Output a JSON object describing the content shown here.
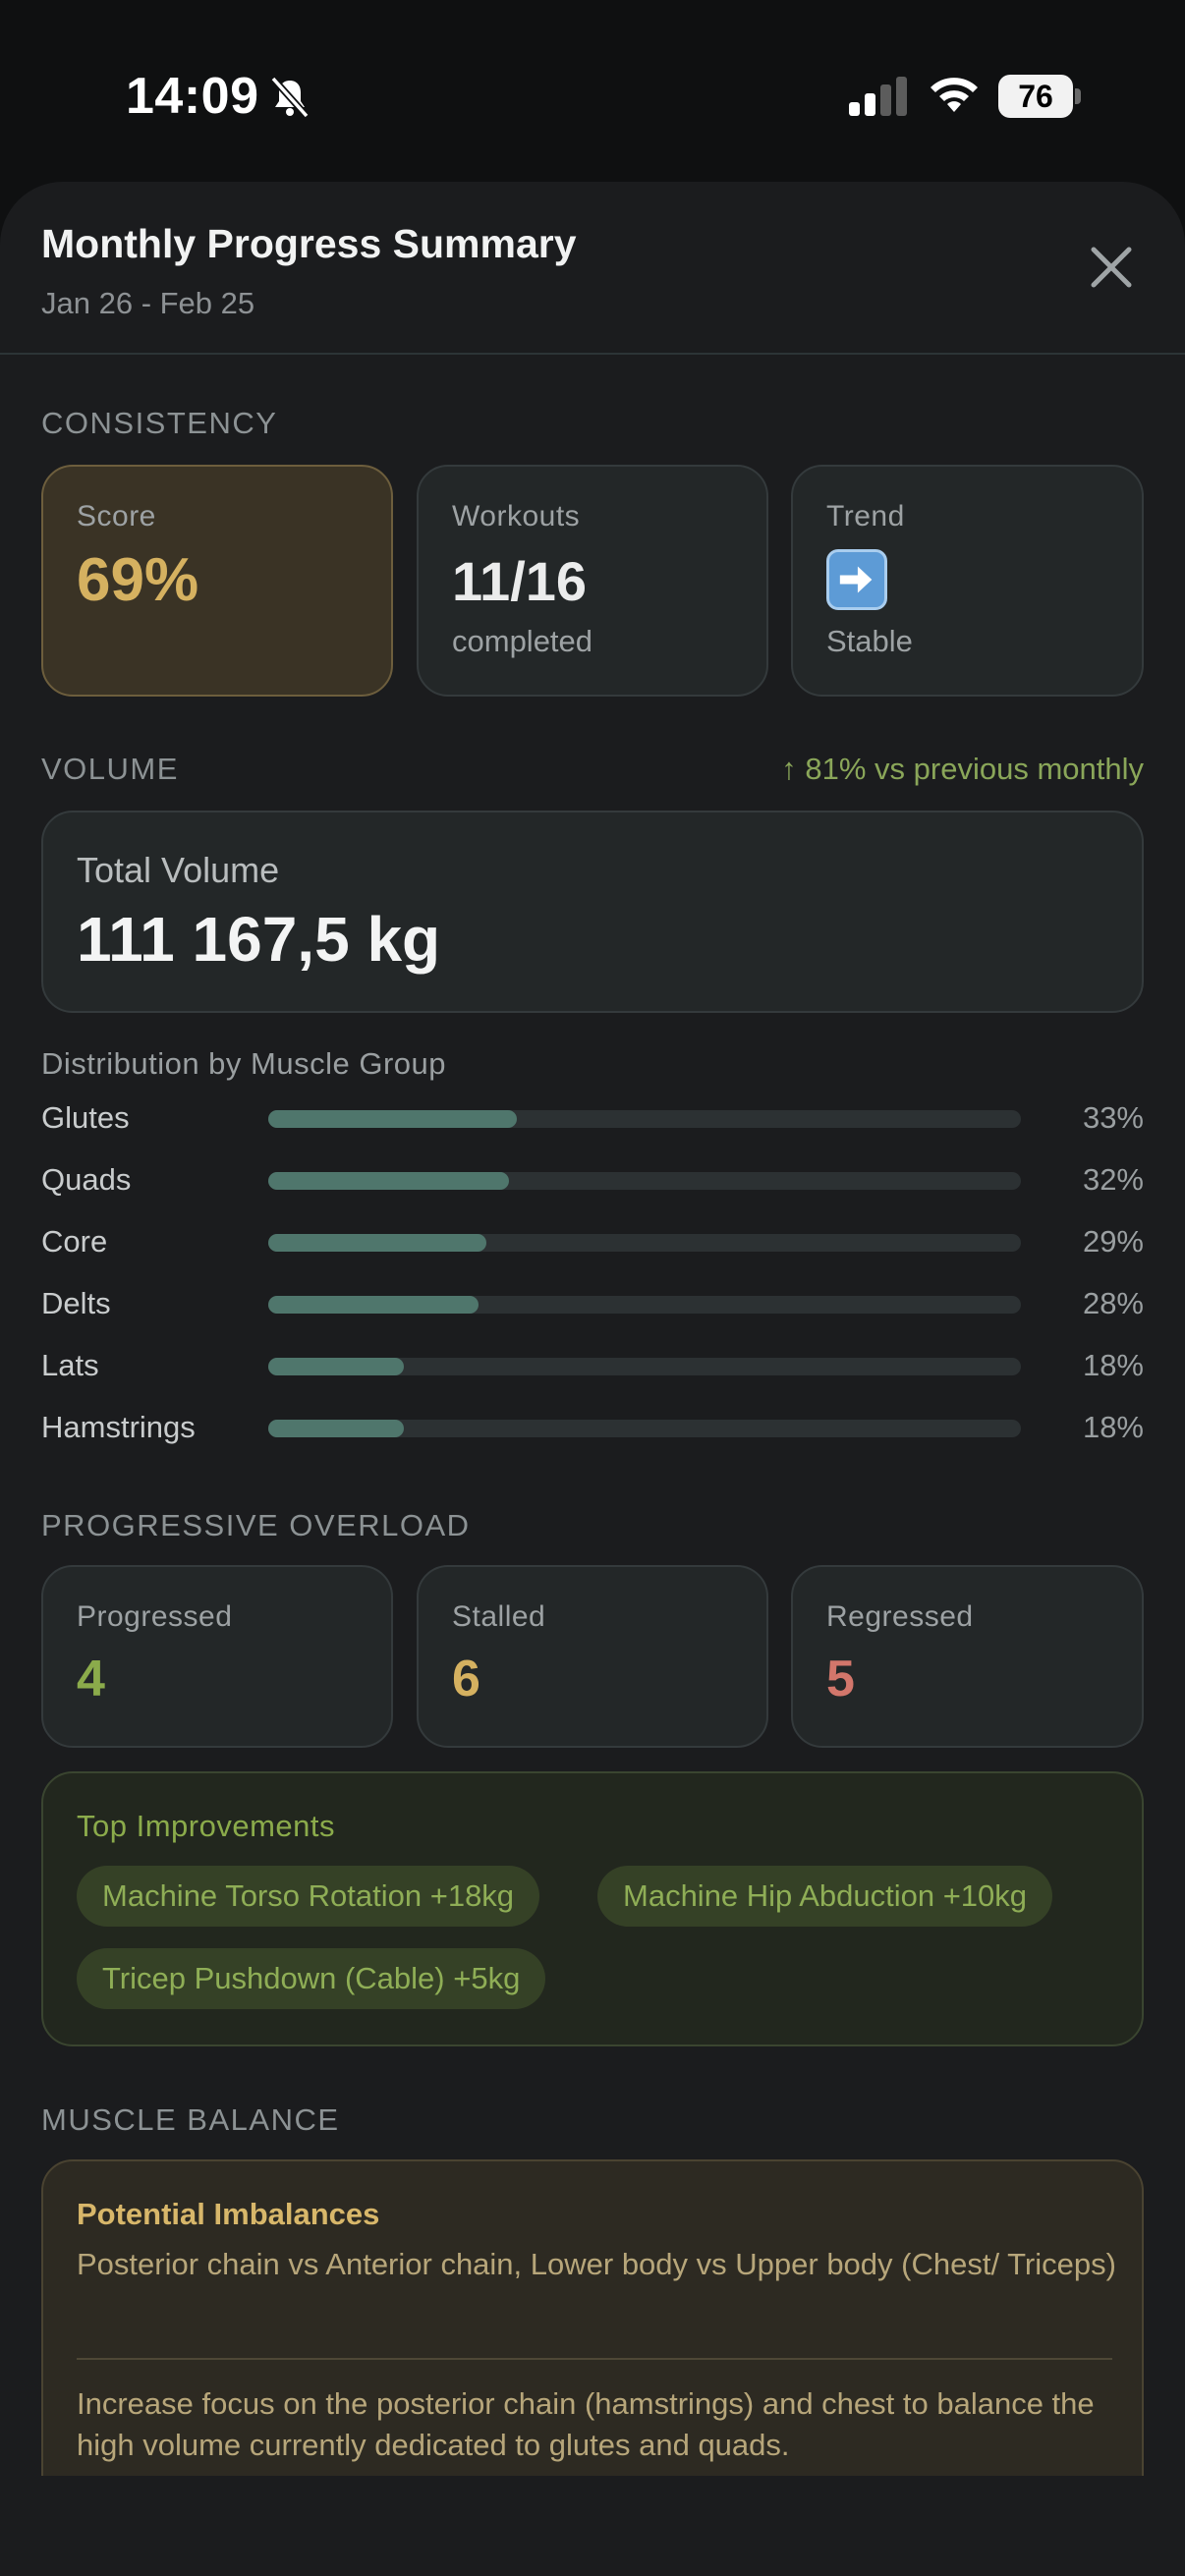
{
  "status_bar": {
    "time": "14:09",
    "battery": "76"
  },
  "header": {
    "title": "Monthly Progress Summary",
    "date_range": "Jan 26 - Feb 25"
  },
  "consistency": {
    "label": "CONSISTENCY",
    "score": {
      "label": "Score",
      "value": "69%"
    },
    "workouts": {
      "label": "Workouts",
      "value": "11/16",
      "sub": "completed"
    },
    "trend": {
      "label": "Trend",
      "icon": "right-arrow-emoji",
      "sub": "Stable"
    }
  },
  "volume": {
    "label": "VOLUME",
    "change": "↑ 81% vs previous monthly",
    "total_label": "Total Volume",
    "total_value": "111 167,5 kg",
    "distribution_title": "Distribution by Muscle Group",
    "muscles": [
      {
        "name": "Glutes",
        "pct": "33%",
        "fraction": 0.33
      },
      {
        "name": "Quads",
        "pct": "32%",
        "fraction": 0.32
      },
      {
        "name": "Core",
        "pct": "29%",
        "fraction": 0.29
      },
      {
        "name": "Delts",
        "pct": "28%",
        "fraction": 0.28
      },
      {
        "name": "Lats",
        "pct": "18%",
        "fraction": 0.18
      },
      {
        "name": "Hamstrings",
        "pct": "18%",
        "fraction": 0.18
      }
    ]
  },
  "overload": {
    "label": "PROGRESSIVE OVERLOAD",
    "progressed": {
      "label": "Progressed",
      "value": "4"
    },
    "stalled": {
      "label": "Stalled",
      "value": "6"
    },
    "regressed": {
      "label": "Regressed",
      "value": "5"
    },
    "top_title": "Top Improvements",
    "improvements": [
      "Machine Torso Rotation +18kg",
      "Machine Hip Abduction +10kg",
      "Tricep Pushdown (Cable) +5kg"
    ]
  },
  "balance": {
    "label": "MUSCLE BALANCE",
    "title": "Potential Imbalances",
    "text": "Posterior chain vs Anterior chain, Lower body vs Upper body (Chest/ Triceps)",
    "advice": "Increase focus on the posterior chain (hamstrings) and chest to balance the high volume currently dedicated to glutes and quads."
  },
  "colors": {
    "accent_green": "#8bab4b",
    "accent_gold": "#d5b160",
    "accent_red": "#d2766b",
    "bar_fill": "#4f766c"
  }
}
